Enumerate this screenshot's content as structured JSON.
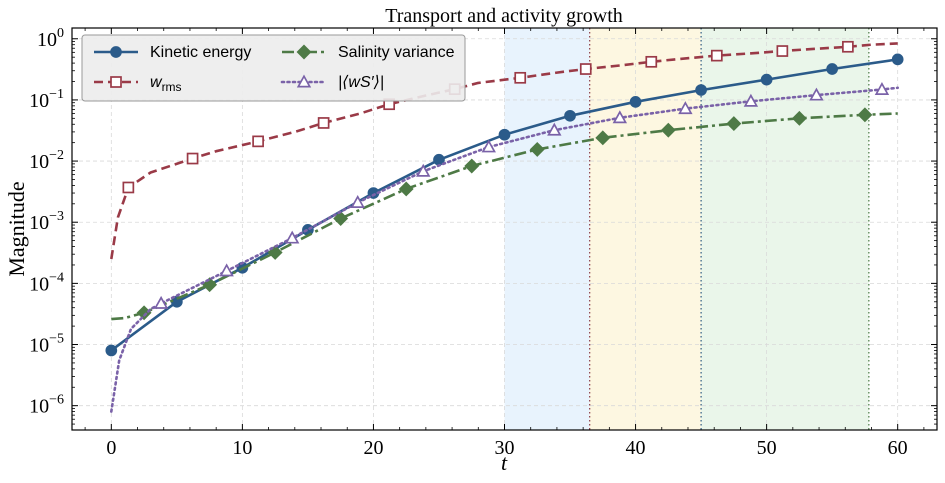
{
  "chart_data": {
    "type": "line",
    "title": "Transport and activity growth",
    "xlabel": "t",
    "ylabel": "Magnitude",
    "xlim": [
      -3,
      63
    ],
    "ylim": [
      4e-07,
      1.5
    ],
    "yscale": "log",
    "grid": true,
    "legend": "top-left",
    "legend_columns": 2,
    "x_ticks": [
      "0",
      "10",
      "20",
      "30",
      "40",
      "50",
      "60"
    ],
    "y_ticks": [
      {
        "value": 1e-06,
        "base": "10",
        "exp": "−6"
      },
      {
        "value": 1e-05,
        "base": "10",
        "exp": "−5"
      },
      {
        "value": 0.0001,
        "base": "10",
        "exp": "−4"
      },
      {
        "value": 0.001,
        "base": "10",
        "exp": "−3"
      },
      {
        "value": 0.01,
        "base": "10",
        "exp": "−2"
      },
      {
        "value": 0.1,
        "base": "10",
        "exp": "−1"
      },
      {
        "value": 1,
        "base": "10",
        "exp": "0"
      }
    ],
    "shaded_regions": [
      {
        "x0": 30,
        "x1": 36.5,
        "color": "#d6e9fb"
      },
      {
        "x0": 36.5,
        "x1": 45,
        "color": "#fbf0c8"
      },
      {
        "x0": 45,
        "x1": 57.8,
        "color": "#d8eed8"
      }
    ],
    "vlines": [
      {
        "x": 36.5,
        "color": "#8a3a45"
      },
      {
        "x": 45,
        "color": "#2d5a80"
      },
      {
        "x": 57.8,
        "color": "#4a7a45"
      }
    ],
    "series": [
      {
        "name": "Kinetic energy",
        "legend_label": "Kinetic energy",
        "color": "#2b5b8a",
        "dash": "solid",
        "marker": "circle",
        "filled": true,
        "x": [
          0,
          5,
          10,
          15,
          20,
          25,
          30,
          35,
          40,
          45,
          50,
          55,
          60
        ],
        "y": [
          8e-06,
          5e-05,
          0.00018,
          0.00075,
          0.003,
          0.0105,
          0.027,
          0.055,
          0.093,
          0.145,
          0.215,
          0.32,
          0.46
        ]
      },
      {
        "name": "w_rms",
        "legend_label": "w",
        "legend_sub": "rms",
        "color": "#9a3a47",
        "dash": "dashed",
        "marker": "square",
        "filled": false,
        "x": [
          0,
          0.5,
          1.3,
          3,
          6.2,
          8,
          11.2,
          14,
          16.2,
          19,
          21.2,
          24,
          26.2,
          28,
          31.2,
          34,
          36.2,
          39,
          41.2,
          43,
          46.2,
          49,
          51.2,
          53,
          56.2,
          58,
          60
        ],
        "y": [
          0.00025,
          0.0012,
          0.0037,
          0.0065,
          0.011,
          0.0145,
          0.021,
          0.03,
          0.042,
          0.06,
          0.085,
          0.118,
          0.15,
          0.19,
          0.23,
          0.28,
          0.32,
          0.37,
          0.42,
          0.46,
          0.53,
          0.58,
          0.63,
          0.67,
          0.74,
          0.8,
          0.84
        ]
      },
      {
        "name": "Salinity variance",
        "legend_label": "Salinity variance",
        "color": "#4e7a46",
        "dash": "dashdot",
        "marker": "diamond",
        "filled": true,
        "x": [
          0,
          1,
          2.5,
          7.5,
          12.5,
          17.5,
          22.5,
          27.5,
          32.5,
          37.5,
          42.5,
          47.5,
          52.5,
          57.5,
          60
        ],
        "y": [
          2.6e-05,
          2.7e-05,
          3.3e-05,
          9.5e-05,
          0.00032,
          0.00115,
          0.0035,
          0.0083,
          0.0155,
          0.024,
          0.032,
          0.041,
          0.05,
          0.057,
          0.06
        ]
      },
      {
        "name": "|<wS'>|",
        "legend_label": "|⟨wS′⟩|",
        "color": "#7a62a8",
        "dash": "dotted",
        "marker": "triangle",
        "filled": false,
        "x": [
          0,
          0.6,
          1.5,
          3,
          3.8,
          8.8,
          13.8,
          18.8,
          23.8,
          28.8,
          33.8,
          38.8,
          43.8,
          48.8,
          53.8,
          58.8,
          60
        ],
        "y": [
          8e-07,
          5.5e-06,
          1.8e-05,
          3.8e-05,
          4.7e-05,
          0.00016,
          0.00055,
          0.0021,
          0.0068,
          0.017,
          0.032,
          0.051,
          0.072,
          0.095,
          0.12,
          0.148,
          0.158
        ]
      }
    ]
  }
}
